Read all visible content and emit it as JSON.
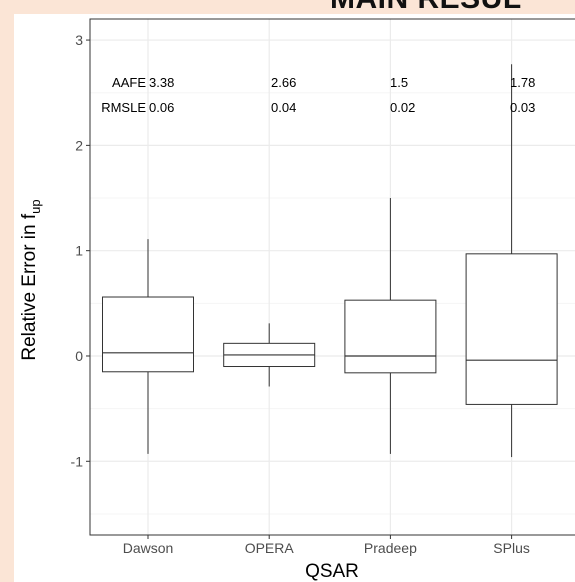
{
  "banner": {
    "text": "MAIN RESUL"
  },
  "chart_data": {
    "type": "box",
    "title": "",
    "xlabel": "QSAR",
    "ylabel_main": "Relative Error in f",
    "ylabel_sub": "up",
    "categories": [
      "Dawson",
      "OPERA",
      "Pradeep",
      "SPlus"
    ],
    "boxes": [
      {
        "name": "Dawson",
        "whisker_low": -0.93,
        "q1": -0.15,
        "median": 0.03,
        "q3": 0.56,
        "whisker_high": 1.11
      },
      {
        "name": "OPERA",
        "whisker_low": -0.29,
        "q1": -0.1,
        "median": 0.01,
        "q3": 0.12,
        "whisker_high": 0.31
      },
      {
        "name": "Pradeep",
        "whisker_low": -0.93,
        "q1": -0.16,
        "median": 0.0,
        "q3": 0.53,
        "whisker_high": 1.5
      },
      {
        "name": "SPlus",
        "whisker_low": -0.96,
        "q1": -0.46,
        "median": -0.04,
        "q3": 0.97,
        "whisker_high": 2.77
      }
    ],
    "ylim": [
      -1.7,
      3.2
    ],
    "yticks": [
      -1,
      0,
      1,
      2,
      3
    ],
    "grid": true,
    "annotations": {
      "row_labels": [
        "AAFE",
        "RMSLE"
      ],
      "values": [
        {
          "aafe": "3.38",
          "rmsle": "0.06"
        },
        {
          "aafe": "2.66",
          "rmsle": "0.04"
        },
        {
          "aafe": "1.5",
          "rmsle": "0.02"
        },
        {
          "aafe": "1.78",
          "rmsle": "0.03"
        }
      ]
    }
  },
  "colors": {
    "background": "#fbe5d6",
    "panel": "#ffffff",
    "plot_border": "#333333",
    "grid_major": "#ebebeb",
    "grid_minor": "#f5f5f5",
    "box_stroke": "#333333",
    "tick_text": "#4d4d4d"
  }
}
